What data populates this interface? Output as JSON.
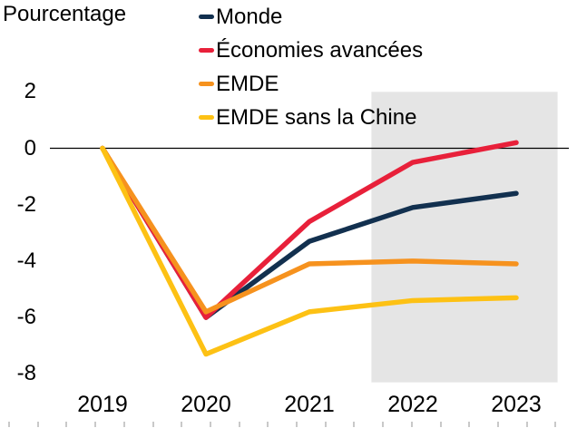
{
  "title": "Pourcentage",
  "colors": {
    "navy": "#12304f",
    "red": "#e8203a",
    "orange": "#f6921e",
    "yellow": "#fdc114",
    "band": "#e5e5e5",
    "axis": "#000000",
    "minor_tick": "#c9c9c9",
    "text": "#000000"
  },
  "legend": {
    "items": [
      {
        "label": "Monde",
        "color": "navy"
      },
      {
        "label": "Économies avancées",
        "color": "red"
      },
      {
        "label": "EMDE",
        "color": "orange"
      },
      {
        "label": "EMDE sans la Chine",
        "color": "yellow"
      }
    ]
  },
  "chart_data": {
    "type": "line",
    "title": "",
    "ylabel": "Pourcentage",
    "xlabel": "",
    "x": [
      2019,
      2020,
      2021,
      2022,
      2023
    ],
    "series": [
      {
        "name": "Monde",
        "color": "navy",
        "values": [
          0,
          -6.0,
          -3.3,
          -2.1,
          -1.6
        ]
      },
      {
        "name": "Économies avancées",
        "color": "red",
        "values": [
          0,
          -6.0,
          -2.6,
          -0.5,
          0.2
        ]
      },
      {
        "name": "EMDE",
        "color": "orange",
        "values": [
          0,
          -5.8,
          -4.1,
          -4.0,
          -4.1
        ]
      },
      {
        "name": "EMDE sans la Chine",
        "color": "yellow",
        "values": [
          0,
          -7.3,
          -5.8,
          -5.4,
          -5.3
        ]
      }
    ],
    "yticks": [
      2,
      0,
      -2,
      -4,
      -6,
      -8
    ],
    "ylim": [
      -8.3,
      2.0
    ],
    "xlim": [
      2018.5,
      2023.5
    ],
    "grid": false,
    "legend_position": "top",
    "zero_baseline": true,
    "shaded_region": {
      "x_start": 2021.6,
      "x_end": 2023.4
    }
  }
}
